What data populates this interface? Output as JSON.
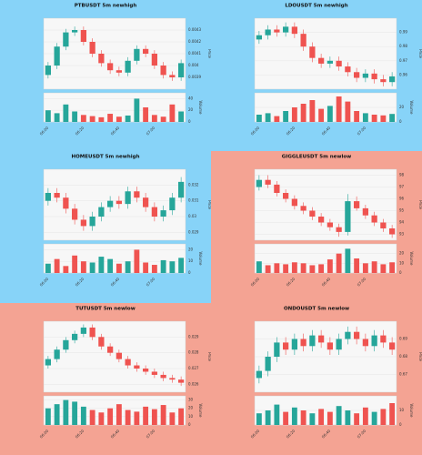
{
  "chart_data": [
    {
      "type": "candlestick",
      "title": "PTBUSDT 5m newhigh",
      "background": "#87d3f8",
      "up_color": "#26a69a",
      "down_color": "#ef5350",
      "ylabel": "Price",
      "y2label": "Volume",
      "categories": [
        "06:00",
        null,
        null,
        null,
        "06:20",
        null,
        null,
        null,
        "06:40",
        null,
        null,
        null,
        "07:00",
        null,
        null,
        null
      ],
      "open": [
        0.00392,
        0.004,
        0.00416,
        0.00428,
        0.0043,
        0.0042,
        0.0041,
        0.00402,
        0.00396,
        0.00394,
        0.00404,
        0.00414,
        0.0041,
        0.004,
        0.00392,
        0.0039
      ],
      "high": [
        0.00403,
        0.00419,
        0.00431,
        0.00433,
        0.00433,
        0.00423,
        0.00413,
        0.00405,
        0.00399,
        0.00407,
        0.00417,
        0.00417,
        0.00413,
        0.00403,
        0.00395,
        0.00405
      ],
      "low": [
        0.00389,
        0.00397,
        0.00413,
        0.00425,
        0.00417,
        0.00407,
        0.00399,
        0.00393,
        0.00391,
        0.00391,
        0.00401,
        0.00407,
        0.00397,
        0.00389,
        0.00387,
        0.00387
      ],
      "close": [
        0.004,
        0.00416,
        0.00428,
        0.0043,
        0.0042,
        0.0041,
        0.00402,
        0.00396,
        0.00394,
        0.00404,
        0.00414,
        0.0041,
        0.004,
        0.00392,
        0.0039,
        0.00402
      ],
      "volume": [
        20,
        15,
        30,
        18,
        12,
        10,
        8,
        14,
        9,
        11,
        40,
        25,
        12,
        9,
        30,
        18
      ],
      "ylim": [
        0.0038,
        0.0044
      ],
      "yticks": [
        0.0039,
        0.004,
        0.0041,
        0.0042,
        0.0043
      ],
      "y2lim": [
        0,
        50
      ],
      "y2ticks": [
        0,
        20,
        40
      ]
    },
    {
      "type": "candlestick",
      "title": "LDOUSDT 5m newhigh",
      "background": "#87d3f8",
      "up_color": "#26a69a",
      "down_color": "#ef5350",
      "ylabel": "Price",
      "y2label": "Volume",
      "categories": [
        "06:00",
        null,
        null,
        null,
        "06:20",
        null,
        null,
        null,
        "06:40",
        null,
        null,
        null,
        "07:00",
        null,
        null,
        null
      ],
      "open": [
        0.985,
        0.988,
        0.992,
        0.99,
        0.994,
        0.989,
        0.98,
        0.972,
        0.968,
        0.97,
        0.966,
        0.962,
        0.958,
        0.961,
        0.957,
        0.955
      ],
      "high": [
        0.991,
        0.995,
        0.995,
        0.997,
        0.997,
        0.992,
        0.983,
        0.975,
        0.973,
        0.973,
        0.969,
        0.965,
        0.964,
        0.964,
        0.96,
        0.962
      ],
      "low": [
        0.982,
        0.985,
        0.987,
        0.987,
        0.986,
        0.977,
        0.969,
        0.965,
        0.965,
        0.963,
        0.959,
        0.955,
        0.955,
        0.954,
        0.952,
        0.952
      ],
      "close": [
        0.988,
        0.992,
        0.99,
        0.994,
        0.989,
        0.98,
        0.972,
        0.968,
        0.97,
        0.966,
        0.962,
        0.958,
        0.961,
        0.957,
        0.955,
        0.959
      ],
      "volume": [
        10,
        12,
        8,
        15,
        20,
        25,
        30,
        18,
        22,
        35,
        28,
        15,
        12,
        10,
        9,
        11
      ],
      "ylim": [
        0.95,
        1.0
      ],
      "yticks": [
        0.96,
        0.97,
        0.98,
        0.99
      ],
      "y2lim": [
        0,
        40
      ],
      "y2ticks": [
        0,
        20
      ]
    },
    {
      "type": "candlestick",
      "title": "HOMEUSDT 5m newhigh",
      "background": "#87d3f8",
      "up_color": "#26a69a",
      "down_color": "#ef5350",
      "ylabel": "Price",
      "y2label": "Volume",
      "categories": [
        "06:00",
        null,
        null,
        null,
        "06:20",
        null,
        null,
        null,
        "06:40",
        null,
        null,
        null,
        "07:00",
        null,
        null,
        null
      ],
      "open": [
        0.031,
        0.0315,
        0.0312,
        0.0305,
        0.0298,
        0.0294,
        0.03,
        0.0306,
        0.031,
        0.0308,
        0.0316,
        0.0312,
        0.0306,
        0.03,
        0.0304,
        0.0312
      ],
      "high": [
        0.0318,
        0.0318,
        0.0315,
        0.0308,
        0.0301,
        0.0303,
        0.0309,
        0.0313,
        0.0313,
        0.0319,
        0.0319,
        0.0315,
        0.0309,
        0.0307,
        0.0315,
        0.0325
      ],
      "low": [
        0.0307,
        0.0309,
        0.0302,
        0.0295,
        0.0291,
        0.0291,
        0.0297,
        0.0303,
        0.0305,
        0.0305,
        0.0309,
        0.0303,
        0.0297,
        0.0297,
        0.0301,
        0.0309
      ],
      "close": [
        0.0315,
        0.0312,
        0.0305,
        0.0298,
        0.0294,
        0.03,
        0.0306,
        0.031,
        0.0308,
        0.0316,
        0.0312,
        0.0306,
        0.03,
        0.0304,
        0.0312,
        0.0322
      ],
      "volume": [
        8,
        12,
        6,
        15,
        10,
        9,
        14,
        12,
        8,
        10,
        20,
        9,
        7,
        11,
        10,
        13
      ],
      "ylim": [
        0.0285,
        0.033
      ],
      "yticks": [
        0.029,
        0.03,
        0.031,
        0.032
      ],
      "y2lim": [
        0,
        25
      ],
      "y2ticks": [
        0,
        10,
        20
      ]
    },
    {
      "type": "candlestick",
      "title": "GIGGLEUSDT 5m newlow",
      "background": "#f4a393",
      "up_color": "#26a69a",
      "down_color": "#ef5350",
      "ylabel": "Price",
      "y2label": "Volume",
      "categories": [
        "06:00",
        null,
        null,
        null,
        "06:20",
        null,
        null,
        null,
        "06:40",
        null,
        null,
        null,
        "07:00",
        null,
        null,
        null
      ],
      "open": [
        97.0,
        97.6,
        97.2,
        96.5,
        96.0,
        95.4,
        95.0,
        94.5,
        94.0,
        93.6,
        93.2,
        95.8,
        95.2,
        94.6,
        94.0,
        93.5
      ],
      "high": [
        98.0,
        98.0,
        97.5,
        96.8,
        96.3,
        95.7,
        95.3,
        94.8,
        94.3,
        93.9,
        96.4,
        96.2,
        95.5,
        94.9,
        94.3,
        93.8
      ],
      "low": [
        96.7,
        96.9,
        96.2,
        95.7,
        95.1,
        94.7,
        94.2,
        93.7,
        93.3,
        92.8,
        92.9,
        95.0,
        94.3,
        93.7,
        93.2,
        92.7
      ],
      "close": [
        97.6,
        97.2,
        96.5,
        96.0,
        95.4,
        95.0,
        94.5,
        94.0,
        93.6,
        93.2,
        95.8,
        95.2,
        94.6,
        94.0,
        93.5,
        93.0
      ],
      "volume": [
        12,
        8,
        10,
        9,
        11,
        10,
        8,
        9,
        14,
        20,
        25,
        15,
        10,
        12,
        9,
        11
      ],
      "ylim": [
        92.5,
        98.5
      ],
      "yticks": [
        93,
        94,
        95,
        96,
        97,
        98
      ],
      "y2lim": [
        0,
        30
      ],
      "y2ticks": [
        0,
        10,
        20
      ]
    },
    {
      "type": "candlestick",
      "title": "TUTUSDT 5m newlow",
      "background": "#f4a393",
      "up_color": "#26a69a",
      "down_color": "#ef5350",
      "ylabel": "Price",
      "y2label": "Volume",
      "categories": [
        "06:00",
        null,
        null,
        null,
        "06:20",
        null,
        null,
        null,
        "06:40",
        null,
        null,
        null,
        "07:00",
        null,
        null,
        null
      ],
      "open": [
        0.0272,
        0.0276,
        0.0282,
        0.0288,
        0.0292,
        0.0296,
        0.029,
        0.0284,
        0.028,
        0.0276,
        0.0272,
        0.027,
        0.0268,
        0.0266,
        0.0264,
        0.0263
      ],
      "high": [
        0.0278,
        0.0284,
        0.029,
        0.0294,
        0.0298,
        0.0298,
        0.0292,
        0.0286,
        0.0282,
        0.0278,
        0.0274,
        0.0272,
        0.027,
        0.0268,
        0.0266,
        0.0265
      ],
      "low": [
        0.027,
        0.0274,
        0.028,
        0.0286,
        0.029,
        0.0288,
        0.0282,
        0.0278,
        0.0274,
        0.027,
        0.0268,
        0.0266,
        0.0264,
        0.0262,
        0.0261,
        0.0259
      ],
      "close": [
        0.0276,
        0.0282,
        0.0288,
        0.0292,
        0.0296,
        0.029,
        0.0284,
        0.028,
        0.0276,
        0.0272,
        0.027,
        0.0268,
        0.0266,
        0.0264,
        0.0263,
        0.0261
      ],
      "volume": [
        20,
        25,
        30,
        28,
        22,
        18,
        15,
        20,
        25,
        18,
        16,
        22,
        19,
        24,
        15,
        20
      ],
      "ylim": [
        0.0255,
        0.03
      ],
      "yticks": [
        0.026,
        0.027,
        0.028,
        0.029
      ],
      "y2lim": [
        0,
        35
      ],
      "y2ticks": [
        0,
        10,
        20,
        30
      ]
    },
    {
      "type": "candlestick",
      "title": "ONDOUSDT 5m newlow",
      "background": "#f4a393",
      "up_color": "#26a69a",
      "down_color": "#ef5350",
      "ylabel": "Price",
      "y2label": "Volume",
      "categories": [
        "06:00",
        null,
        null,
        null,
        "06:20",
        null,
        null,
        null,
        "06:40",
        null,
        null,
        null,
        "07:00",
        null,
        null,
        null
      ],
      "open": [
        0.668,
        0.672,
        0.68,
        0.688,
        0.684,
        0.69,
        0.686,
        0.692,
        0.688,
        0.684,
        0.69,
        0.694,
        0.69,
        0.686,
        0.692,
        0.688
      ],
      "high": [
        0.675,
        0.683,
        0.691,
        0.691,
        0.693,
        0.693,
        0.695,
        0.695,
        0.691,
        0.693,
        0.697,
        0.697,
        0.693,
        0.695,
        0.695,
        0.691
      ],
      "low": [
        0.665,
        0.669,
        0.677,
        0.681,
        0.681,
        0.683,
        0.683,
        0.685,
        0.681,
        0.681,
        0.687,
        0.687,
        0.683,
        0.683,
        0.685,
        0.681
      ],
      "close": [
        0.672,
        0.68,
        0.688,
        0.684,
        0.69,
        0.686,
        0.692,
        0.688,
        0.684,
        0.69,
        0.694,
        0.69,
        0.686,
        0.692,
        0.688,
        0.684
      ],
      "volume": [
        8,
        10,
        14,
        9,
        12,
        10,
        8,
        11,
        9,
        13,
        10,
        8,
        12,
        9,
        11,
        15
      ],
      "ylim": [
        0.66,
        0.7
      ],
      "yticks": [
        0.67,
        0.68,
        0.69
      ],
      "y2lim": [
        0,
        20
      ],
      "y2ticks": [
        0,
        10
      ]
    }
  ]
}
